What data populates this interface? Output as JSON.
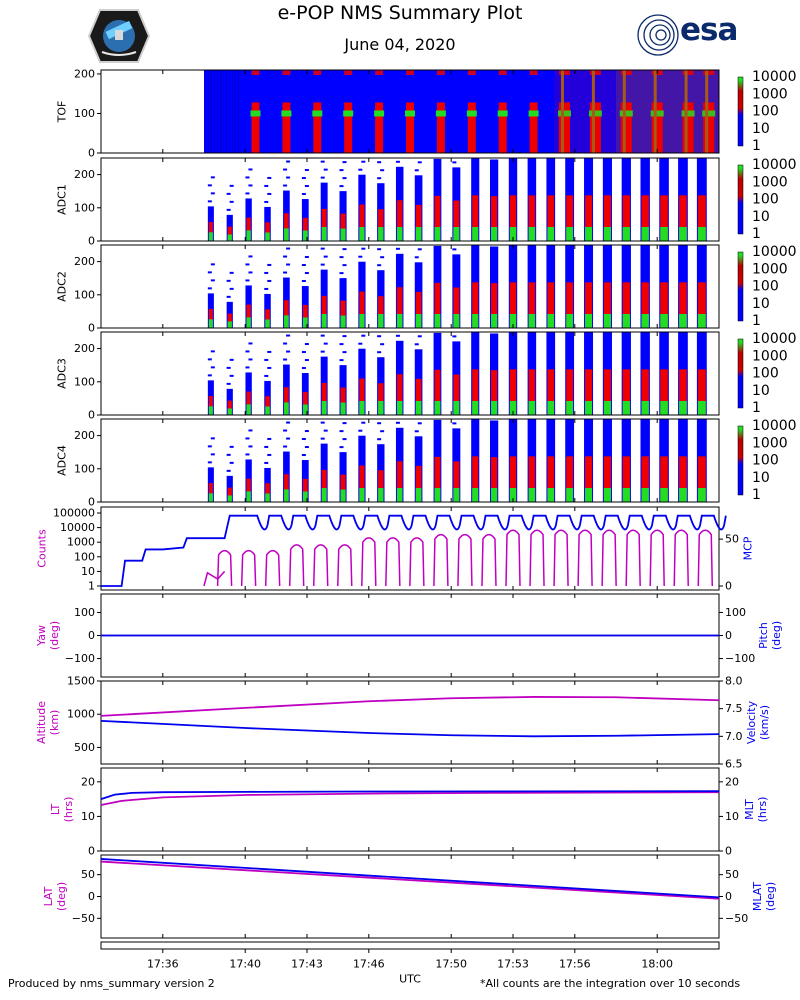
{
  "header": {
    "title": "e-POP NMS Summary Plot",
    "date": "June 04, 2020",
    "left_logo": "satellite-mission-patch",
    "right_logo_text": "esa"
  },
  "footer": {
    "left": "Produced by nms_summary version 2",
    "right": "*All counts are the integration over 10 seconds"
  },
  "colors": {
    "magenta": "#c000c0",
    "blue": "#0000ee",
    "spec_bg": "#0000ff",
    "spec_red": "#ee0000",
    "spec_green": "#22dd22",
    "spec_brown": "#9c6a1a"
  },
  "chart_data": [
    {
      "type": "heatmap",
      "ylabel": "TOF",
      "ylim": [
        0,
        210
      ],
      "yticks": [
        0,
        100,
        200
      ],
      "colorbar": {
        "ticks": [
          "10000",
          "1000",
          "100",
          "10",
          "1"
        ]
      },
      "data_start": "17:38",
      "bright_bursts": [
        "17:40:30",
        "17:42:00",
        "17:43:30",
        "17:45:00",
        "17:46:30",
        "17:48:00",
        "17:49:30",
        "17:51:00",
        "17:52:30",
        "17:54:00",
        "17:55:30",
        "17:57:00",
        "17:58:30",
        "18:00:00",
        "18:01:30",
        "18:02:30"
      ]
    },
    {
      "type": "heatmap",
      "ylabel": "ADC1",
      "ylim": [
        0,
        250
      ],
      "yticks": [
        0,
        100,
        200
      ],
      "colorbar": {
        "ticks": [
          "10000",
          "1000",
          "100",
          "10",
          "1"
        ]
      }
    },
    {
      "type": "heatmap",
      "ylabel": "ADC2",
      "ylim": [
        0,
        250
      ],
      "yticks": [
        0,
        100,
        200
      ],
      "colorbar": {
        "ticks": [
          "10000",
          "1000",
          "100",
          "10",
          "1"
        ]
      }
    },
    {
      "type": "heatmap",
      "ylabel": "ADC3",
      "ylim": [
        0,
        250
      ],
      "yticks": [
        0,
        100,
        200
      ],
      "colorbar": {
        "ticks": [
          "10000",
          "1000",
          "100",
          "10",
          "1"
        ]
      }
    },
    {
      "type": "heatmap",
      "ylabel": "ADC4",
      "ylim": [
        0,
        250
      ],
      "yticks": [
        0,
        100,
        200
      ],
      "colorbar": {
        "ticks": [
          "10000",
          "1000",
          "100",
          "10",
          "1"
        ]
      }
    },
    {
      "type": "line",
      "ylabel_left": "Counts",
      "ylabel_right": "MCP",
      "left_ticks": [
        "100000",
        "10000",
        "1000",
        "100",
        "10",
        "1"
      ],
      "right_ticks": [
        "50",
        "0"
      ],
      "right_ylim": [
        0,
        80
      ],
      "mcp": {
        "x": [
          "17:33:00",
          "17:34:00",
          "17:34:10",
          "17:35:00",
          "17:35:10",
          "17:36:00",
          "17:37:00",
          "17:37:10",
          "17:38:00",
          "17:39:00",
          "17:39:15",
          "17:40:00"
        ],
        "y": [
          0,
          0,
          27,
          27,
          39,
          39,
          41,
          51,
          51,
          51,
          75,
          75
        ]
      },
      "counts_max": [
        1,
        10,
        300,
        400,
        1000,
        3000,
        5000,
        10000,
        10000
      ]
    },
    {
      "type": "line",
      "ylabel_left": "Yaw\n(deg)",
      "ylabel_right": "Pitch\n(deg)",
      "ylim": [
        -180,
        180
      ],
      "ticks": [
        "100",
        "0",
        "−100"
      ],
      "yaw": 0,
      "pitch": 0
    },
    {
      "type": "line",
      "ylabel_left": "Altitude\n(km)",
      "ylabel_right": "Velocity\n(km/s)",
      "left_ylim": [
        250,
        1500
      ],
      "left_ticks": [
        "1500",
        "1000",
        "500"
      ],
      "right_ylim": [
        6.5,
        8.0
      ],
      "right_ticks": [
        "8.0",
        "7.5",
        "7.0",
        "6.5"
      ],
      "altitude": {
        "x": [
          "17:33:00",
          "17:40:00",
          "17:46:00",
          "17:50:00",
          "17:54:00",
          "17:58:00",
          "18:03:00"
        ],
        "y": [
          975,
          1095,
          1195,
          1240,
          1260,
          1255,
          1210
        ]
      },
      "velocity": {
        "x": [
          "17:33:00",
          "17:40:00",
          "17:46:00",
          "17:50:00",
          "17:54:00",
          "17:58:00",
          "18:03:00"
        ],
        "y": [
          7.28,
          7.15,
          7.06,
          7.02,
          7.0,
          7.01,
          7.04
        ]
      }
    },
    {
      "type": "line",
      "ylabel_left": "LT\n(hrs)",
      "ylabel_right": "MLT\n(hrs)",
      "ylim": [
        0,
        24
      ],
      "ticks": [
        "20",
        "10",
        "0"
      ],
      "lt": {
        "x": [
          "17:33:00",
          "17:34:00",
          "17:36:00",
          "17:40:00",
          "17:46:00",
          "17:52:00",
          "18:03:00"
        ],
        "y": [
          13.3,
          14.5,
          15.5,
          16.2,
          16.6,
          16.8,
          17.0
        ]
      },
      "mlt": {
        "x": [
          "17:33:00",
          "17:33:40",
          "17:34:30",
          "17:36:00",
          "17:40:00",
          "17:46:00",
          "18:03:00"
        ],
        "y": [
          15.0,
          16.3,
          16.8,
          17.0,
          17.1,
          17.2,
          17.3
        ]
      }
    },
    {
      "type": "line",
      "ylabel_left": "LAT\n(deg)",
      "ylabel_right": "MLAT\n(deg)",
      "ylim": [
        -95,
        95
      ],
      "left_ticks": [
        "50",
        "0",
        "−50"
      ],
      "right_ticks": [
        "50",
        "0",
        "−50"
      ],
      "lat": {
        "x": [
          "17:33:00",
          "18:03:00"
        ],
        "y": [
          80,
          -5
        ]
      },
      "mlat": {
        "x": [
          "17:33:00",
          "18:03:00"
        ],
        "y": [
          86,
          -2
        ]
      }
    }
  ],
  "x_axis": {
    "label": "UTC",
    "range": [
      "17:33:00",
      "18:03:00"
    ],
    "ticks": [
      "17:36",
      "17:40",
      "17:43",
      "17:46",
      "17:50",
      "17:53",
      "17:56",
      "18:00"
    ]
  }
}
